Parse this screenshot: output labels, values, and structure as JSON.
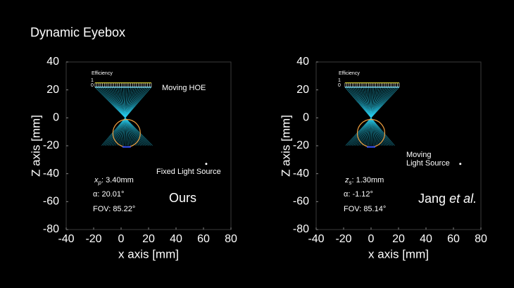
{
  "title": "Dynamic Eyebox",
  "panels": [
    {
      "xlabel": "x axis [mm]",
      "ylabel": "Z axis [mm]",
      "xlim": [
        -40,
        80
      ],
      "ylim": [
        -80,
        40
      ],
      "xticks": [
        -40,
        -20,
        0,
        20,
        40,
        60,
        80
      ],
      "yticks": [
        -80,
        -60,
        -40,
        -20,
        0,
        20,
        40
      ],
      "efficiency_label": "Efficiency",
      "efficiency_ticks": [
        1,
        0
      ],
      "hoe_label": "Moving HOE",
      "source_label": [
        "Fixed Light Source"
      ],
      "param_symbol": "x",
      "param_subscript": "p",
      "param_value": ": 3.40mm",
      "alpha": "α: 20.01°",
      "fov": "FOV: 85.22°",
      "method": "Ours"
    },
    {
      "xlabel": "x axis [mm]",
      "ylabel": "Z axis [mm]",
      "xlim": [
        -40,
        80
      ],
      "ylim": [
        -80,
        40
      ],
      "xticks": [
        -40,
        -20,
        0,
        20,
        40,
        60,
        80
      ],
      "yticks": [
        -80,
        -60,
        -40,
        -20,
        0,
        20,
        40
      ],
      "efficiency_label": "Efficiency",
      "efficiency_ticks": [
        1,
        0
      ],
      "source_label": [
        "Moving",
        "Light Source"
      ],
      "param_symbol": "z",
      "param_subscript": "s",
      "param_value": ": 1.30mm",
      "alpha": "α: -1.12°",
      "fov": "FOV: 85.14°",
      "method": "Jang",
      "method_italic": "et al."
    }
  ]
}
